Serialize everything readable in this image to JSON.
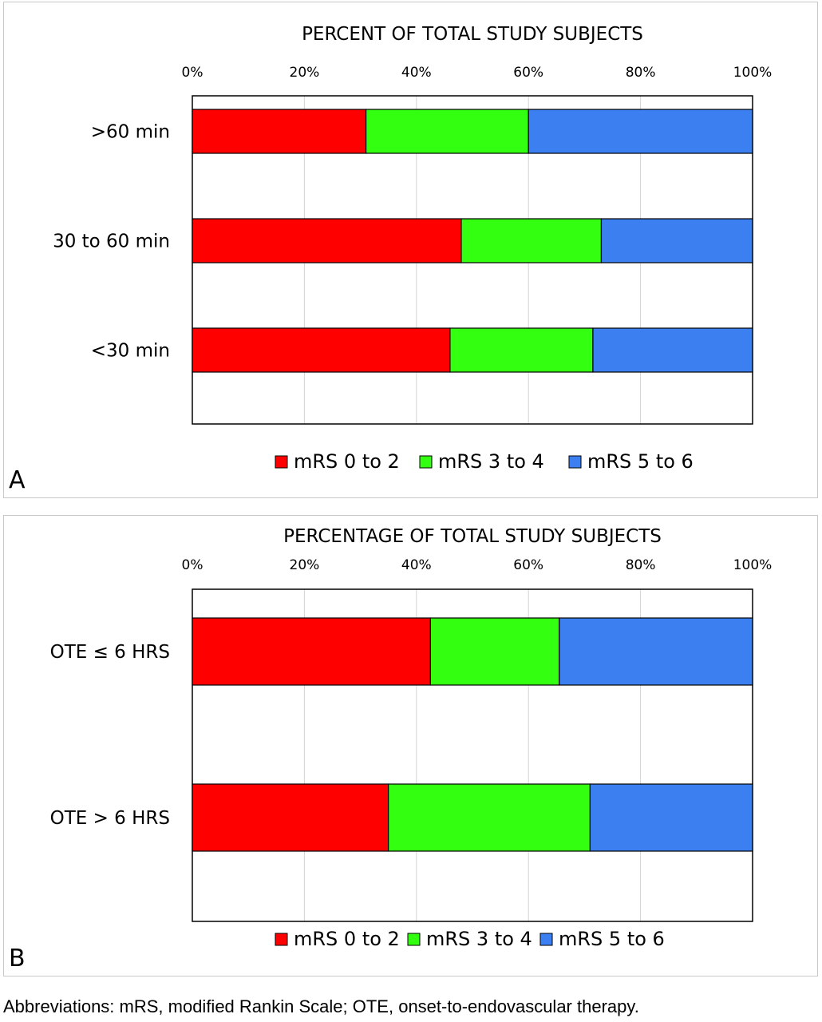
{
  "chart_data": [
    {
      "type": "bar",
      "orientation": "horizontal",
      "stacked": true,
      "panel_letter": "A",
      "title": "PERCENT OF TOTAL STUDY SUBJECTS",
      "categories": [
        ">60 min",
        "30 to 60 min",
        "<30 min"
      ],
      "series": [
        {
          "name": "mRS 0 to 2",
          "values": [
            31,
            48,
            46
          ],
          "color": "#ff0000"
        },
        {
          "name": "mRS 3 to 4",
          "values": [
            29,
            25,
            25.5
          ],
          "color": "#33ff11"
        },
        {
          "name": "mRS 5 to 6",
          "values": [
            40,
            27,
            28.5
          ],
          "color": "#3b7ff0"
        }
      ],
      "xlim": [
        0,
        100
      ],
      "x_ticks": [
        "0%",
        "20%",
        "40%",
        "60%",
        "80%",
        "100%"
      ],
      "x_axis_position": "top",
      "grid": true,
      "legend_position": "bottom"
    },
    {
      "type": "bar",
      "orientation": "horizontal",
      "stacked": true,
      "panel_letter": "B",
      "title": "PERCENTAGE OF TOTAL STUDY SUBJECTS",
      "categories": [
        "OTE ≤ 6 HRS",
        "OTE > 6 HRS"
      ],
      "series": [
        {
          "name": "mRS 0 to 2",
          "values": [
            42.5,
            35
          ],
          "color": "#ff0000"
        },
        {
          "name": "mRS 3 to 4",
          "values": [
            23,
            36
          ],
          "color": "#33ff11"
        },
        {
          "name": "mRS 5 to 6",
          "values": [
            34.5,
            29
          ],
          "color": "#3b7ff0"
        }
      ],
      "xlim": [
        0,
        100
      ],
      "x_ticks": [
        "0%",
        "20%",
        "40%",
        "60%",
        "80%",
        "100%"
      ],
      "x_axis_position": "top",
      "grid": true,
      "legend_position": "bottom"
    }
  ],
  "footnote": "Abbreviations: mRS, modified Rankin Scale; OTE, onset-to-endovascular therapy."
}
